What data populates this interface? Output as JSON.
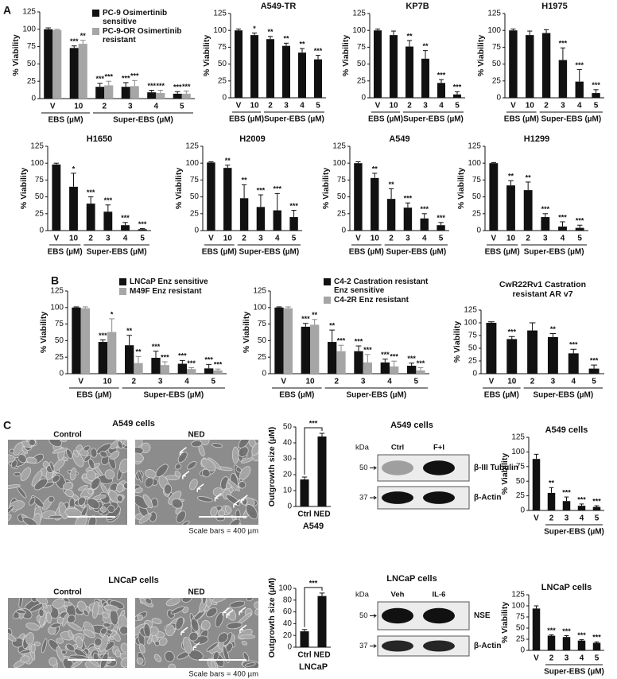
{
  "figure": {
    "panel_labels": [
      "A",
      "B",
      "C"
    ],
    "micrographs": [
      {
        "title": "A549 cells",
        "left_label": "Control",
        "right_label": "NED",
        "scale_note": "Scale bars = 400 µm"
      },
      {
        "title": "LNCaP cells",
        "left_label": "Control",
        "right_label": "NED",
        "scale_note": "Scale bars = 400 µm"
      }
    ],
    "blots": [
      {
        "title": "A549 cells",
        "unit": "kDa",
        "lanes": [
          "Ctrl",
          "F+I"
        ],
        "bands": [
          {
            "marker": "50",
            "label": "β-III Tubulin"
          },
          {
            "marker": "37",
            "label": "β-Actin"
          }
        ]
      },
      {
        "title": "LNCaP cells",
        "unit": "kDa",
        "lanes": [
          "Veh",
          "IL-6"
        ],
        "bands": [
          {
            "marker": "50",
            "label": "NSE"
          },
          {
            "marker": "37",
            "label": "β-Actin"
          }
        ]
      }
    ]
  },
  "chart_data": [
    {
      "type": "bar",
      "ylabel": "% Viability",
      "categories": [
        "V",
        "10",
        "2",
        "3",
        "4",
        "5"
      ],
      "x_group_labels": [
        "EBS (µM)",
        "Super-EBS (µM)"
      ],
      "ylim": [
        0,
        125
      ],
      "yticks": [
        0,
        25,
        50,
        75,
        100,
        125
      ],
      "series": [
        {
          "name": "PC-9 Osimertinib sensitive",
          "color": "#111111",
          "values": [
            100,
            73,
            17,
            17,
            9,
            7
          ],
          "errors": [
            2,
            3,
            5,
            6,
            3,
            3
          ],
          "sig": [
            null,
            "***",
            "***",
            "***",
            "***",
            "***"
          ]
        },
        {
          "name": "PC-9-OR Osimertinib resistant",
          "color": "#a6a6a6",
          "values": [
            99,
            79,
            19,
            18,
            8,
            7
          ],
          "errors": [
            1,
            5,
            6,
            8,
            4,
            4
          ],
          "sig": [
            null,
            "**",
            "***",
            "***",
            "***",
            "***"
          ]
        }
      ]
    },
    {
      "type": "bar",
      "title": "A549-TR",
      "ylabel": "% Viability",
      "categories": [
        "V",
        "10",
        "2",
        "3",
        "4",
        "5"
      ],
      "x_group_labels": [
        "EBS (µM)",
        "Super-EBS (µM)"
      ],
      "ylim": [
        0,
        125
      ],
      "yticks": [
        0,
        25,
        50,
        75,
        100,
        125
      ],
      "series": [
        {
          "color": "#111111",
          "values": [
            100,
            93,
            87,
            77,
            67,
            57
          ],
          "errors": [
            2,
            3,
            4,
            4,
            6,
            6
          ],
          "sig": [
            null,
            "*",
            "**",
            "**",
            "**",
            "***"
          ]
        }
      ]
    },
    {
      "type": "bar",
      "title": "KP7B",
      "ylabel": "% Viability",
      "categories": [
        "V",
        "10",
        "2",
        "3",
        "4",
        "5"
      ],
      "x_group_labels": [
        "EBS (µM)",
        "Super-EBS (µM)"
      ],
      "ylim": [
        0,
        125
      ],
      "yticks": [
        0,
        25,
        50,
        75,
        100,
        125
      ],
      "series": [
        {
          "color": "#111111",
          "values": [
            100,
            93,
            76,
            58,
            22,
            5
          ],
          "errors": [
            2,
            6,
            9,
            12,
            5,
            4
          ],
          "sig": [
            null,
            null,
            "**",
            "**",
            "***",
            "***"
          ]
        }
      ]
    },
    {
      "type": "bar",
      "title": "H1975",
      "ylabel": "% Viability",
      "categories": [
        "V",
        "10",
        "2",
        "3",
        "4",
        "5"
      ],
      "x_group_labels": [
        "EBS (µM)",
        "Super-EBS (µM)"
      ],
      "ylim": [
        0,
        125
      ],
      "yticks": [
        0,
        25,
        50,
        75,
        100,
        125
      ],
      "series": [
        {
          "color": "#111111",
          "values": [
            100,
            93,
            96,
            56,
            24,
            7
          ],
          "errors": [
            2,
            6,
            5,
            18,
            18,
            5
          ],
          "sig": [
            null,
            null,
            null,
            "***",
            "***",
            "***"
          ]
        }
      ]
    },
    {
      "type": "bar",
      "title": "H1650",
      "ylabel": "% Viability",
      "categories": [
        "V",
        "10",
        "2",
        "3",
        "4",
        "5"
      ],
      "x_group_labels": [
        "EBS (µM)",
        "Super-EBS (µM)"
      ],
      "ylim": [
        0,
        125
      ],
      "yticks": [
        0,
        25,
        50,
        75,
        100,
        125
      ],
      "series": [
        {
          "color": "#111111",
          "values": [
            98,
            65,
            40,
            28,
            8,
            2
          ],
          "errors": [
            2,
            20,
            10,
            10,
            4,
            1
          ],
          "sig": [
            null,
            "*",
            "***",
            "***",
            "***",
            "***"
          ]
        }
      ]
    },
    {
      "type": "bar",
      "title": "H2009",
      "ylabel": "% Viability",
      "categories": [
        "V",
        "10",
        "2",
        "3",
        "4",
        "5"
      ],
      "x_group_labels": [
        "EBS (µM)",
        "Super-EBS (µM)"
      ],
      "ylim": [
        0,
        125
      ],
      "yticks": [
        0,
        25,
        50,
        75,
        100,
        125
      ],
      "series": [
        {
          "color": "#111111",
          "values": [
            101,
            93,
            48,
            35,
            30,
            20
          ],
          "errors": [
            1,
            4,
            20,
            18,
            25,
            10
          ],
          "sig": [
            null,
            "**",
            "**",
            "***",
            "***",
            "***"
          ]
        }
      ]
    },
    {
      "type": "bar",
      "title": "A549",
      "ylabel": "% Viability",
      "categories": [
        "V",
        "10",
        "2",
        "3",
        "4",
        "5"
      ],
      "x_group_labels": [
        "EBS (µM)",
        "Super-EBS (µM)"
      ],
      "ylim": [
        0,
        125
      ],
      "yticks": [
        0,
        25,
        50,
        75,
        100,
        125
      ],
      "series": [
        {
          "color": "#111111",
          "values": [
            100,
            78,
            47,
            34,
            18,
            8
          ],
          "errors": [
            2,
            7,
            15,
            7,
            7,
            4
          ],
          "sig": [
            null,
            "**",
            "**",
            "***",
            "***",
            "***"
          ]
        }
      ]
    },
    {
      "type": "bar",
      "title": "H1299",
      "ylabel": "% Viability",
      "categories": [
        "V",
        "10",
        "2",
        "3",
        "4",
        "5"
      ],
      "x_group_labels": [
        "EBS (µM)",
        "Super-EBS (µM)"
      ],
      "ylim": [
        0,
        125
      ],
      "yticks": [
        0,
        25,
        50,
        75,
        100,
        125
      ],
      "series": [
        {
          "color": "#111111",
          "values": [
            100,
            67,
            60,
            20,
            6,
            4
          ],
          "errors": [
            1,
            7,
            12,
            5,
            7,
            4
          ],
          "sig": [
            null,
            "**",
            "**",
            "***",
            "***",
            "***"
          ]
        }
      ]
    },
    {
      "type": "bar",
      "ylabel": "% Viability",
      "categories": [
        "V",
        "10",
        "2",
        "3",
        "4",
        "5"
      ],
      "x_group_labels": [
        "EBS (µM)",
        "Super-EBS (µM)"
      ],
      "ylim": [
        0,
        125
      ],
      "yticks": [
        0,
        25,
        50,
        75,
        100,
        125
      ],
      "series": [
        {
          "name": "LNCaP Enz sensitive",
          "color": "#111111",
          "values": [
            100,
            48,
            43,
            24,
            15,
            8
          ],
          "errors": [
            1,
            3,
            15,
            10,
            5,
            6
          ],
          "sig": [
            null,
            "***",
            "**",
            "***",
            "***",
            "***"
          ]
        },
        {
          "name": "M49F Enz resistant",
          "color": "#a6a6a6",
          "values": [
            99,
            63,
            16,
            13,
            7,
            5
          ],
          "errors": [
            2,
            20,
            10,
            5,
            2,
            2
          ],
          "sig": [
            null,
            "*",
            "**",
            "***",
            "***",
            "***"
          ]
        }
      ]
    },
    {
      "type": "bar",
      "ylabel": "% Viability",
      "categories": [
        "V",
        "10",
        "2",
        "3",
        "4",
        "5"
      ],
      "x_group_labels": [
        "EBS (µM)",
        "Super-EBS (µM)"
      ],
      "ylim": [
        0,
        125
      ],
      "yticks": [
        0,
        25,
        50,
        75,
        100,
        125
      ],
      "series": [
        {
          "name": "C4-2 Castration resistant Enz sensitive",
          "color": "#111111",
          "values": [
            100,
            71,
            48,
            34,
            17,
            12
          ],
          "errors": [
            1,
            5,
            18,
            8,
            5,
            4
          ],
          "sig": [
            null,
            "***",
            "**",
            "***",
            "***",
            "***"
          ]
        },
        {
          "name": "C4-2R Enz resistant",
          "color": "#a6a6a6",
          "values": [
            99,
            74,
            34,
            17,
            11,
            5
          ],
          "errors": [
            2,
            8,
            9,
            12,
            8,
            4
          ],
          "sig": [
            null,
            "**",
            "***",
            "***",
            "***",
            "***"
          ]
        }
      ]
    },
    {
      "type": "bar",
      "title": [
        "CwR22Rv1 Castration",
        "resistant AR v7"
      ],
      "ylabel": "% Viability",
      "categories": [
        "V",
        "10",
        "2",
        "3",
        "4",
        "5"
      ],
      "x_group_labels": [
        "EBS (µM)",
        "Super-EBS (µM)"
      ],
      "ylim": [
        0,
        125
      ],
      "yticks": [
        0,
        25,
        50,
        75,
        100,
        125
      ],
      "series": [
        {
          "color": "#111111",
          "values": [
            100,
            68,
            85,
            72,
            40,
            10
          ],
          "errors": [
            2,
            5,
            15,
            7,
            8,
            7
          ],
          "sig": [
            null,
            "***",
            null,
            "**",
            "***",
            "***"
          ]
        }
      ]
    },
    {
      "type": "bar",
      "ylabel": "Outgrowth size (µM)",
      "xlabel": "A549",
      "categories": [
        "Ctrl",
        "NED"
      ],
      "ylim": [
        0,
        50
      ],
      "yticks": [
        0,
        10,
        20,
        30,
        40,
        50
      ],
      "sig_bracket": "***",
      "series": [
        {
          "color": "#111111",
          "values": [
            17,
            44
          ],
          "errors": [
            1.5,
            2
          ]
        }
      ]
    },
    {
      "type": "bar",
      "title": "A549 cells",
      "ylabel": "% Viability",
      "categories": [
        "V",
        "2",
        "3",
        "4",
        "5"
      ],
      "x_group_labels": [
        "Super-EBS (µM)"
      ],
      "ylim": [
        0,
        125
      ],
      "yticks": [
        0,
        25,
        50,
        75,
        100,
        125
      ],
      "series": [
        {
          "color": "#111111",
          "values": [
            88,
            30,
            16,
            8,
            6
          ],
          "errors": [
            8,
            9,
            7,
            3,
            2
          ],
          "sig": [
            null,
            "**",
            "***",
            "***",
            "***"
          ]
        }
      ]
    },
    {
      "type": "bar",
      "ylabel": "Outgrowth size (µM)",
      "xlabel": "LNCaP",
      "categories": [
        "Ctrl",
        "NED"
      ],
      "ylim": [
        0,
        100
      ],
      "yticks": [
        0,
        20,
        40,
        60,
        80,
        100
      ],
      "sig_bracket": "***",
      "series": [
        {
          "color": "#111111",
          "values": [
            27,
            87
          ],
          "errors": [
            3,
            5
          ]
        }
      ]
    },
    {
      "type": "bar",
      "title": "LNCaP cells",
      "ylabel": "% Viability",
      "categories": [
        "V",
        "2",
        "3",
        "4",
        "5"
      ],
      "x_group_labels": [
        "Super-EBS (µM)"
      ],
      "ylim": [
        0,
        125
      ],
      "yticks": [
        0,
        25,
        50,
        75,
        100,
        125
      ],
      "series": [
        {
          "color": "#111111",
          "values": [
            94,
            33,
            30,
            22,
            17
          ],
          "errors": [
            6,
            2,
            3,
            2,
            2
          ],
          "sig": [
            null,
            "***",
            "***",
            "***",
            "***"
          ]
        }
      ]
    }
  ]
}
